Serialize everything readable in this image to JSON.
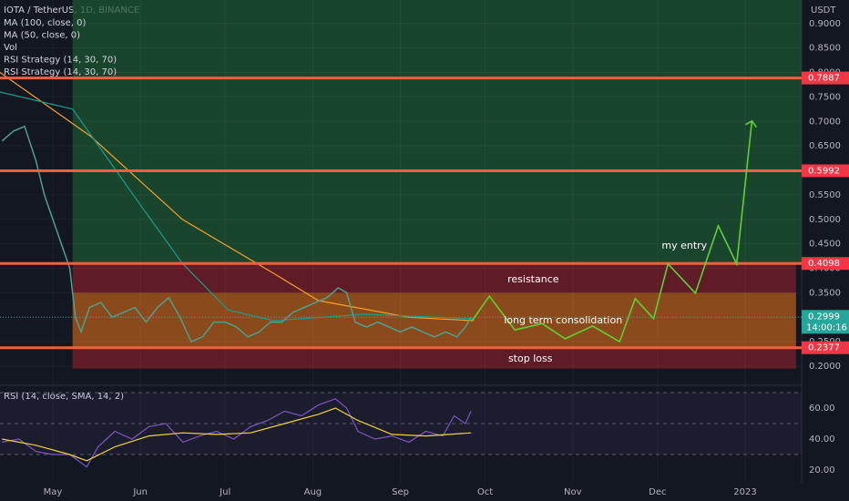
{
  "chart_data": [
    {
      "type": "line",
      "title": "IOTA / TetherUS, 1D, BINANCE",
      "indicators": [
        "MA (100, close, 0)",
        "MA (50, close, 0)",
        "Vol",
        "RSI Strategy (14, 30, 70)",
        "RSI Strategy (14, 30, 70)"
      ],
      "unit": "USDT",
      "xlim": [
        -18.7,
        265
      ],
      "ylim": [
        0.1665,
        0.948
      ],
      "xticks": [
        {
          "value": 0,
          "label": "May"
        },
        {
          "value": 31,
          "label": "Jun"
        },
        {
          "value": 61,
          "label": "Jul"
        },
        {
          "value": 92,
          "label": "Aug"
        },
        {
          "value": 123,
          "label": "Sep"
        },
        {
          "value": 153,
          "label": "Oct"
        },
        {
          "value": 184,
          "label": "Nov"
        },
        {
          "value": 214,
          "label": "Dec"
        },
        {
          "value": 245,
          "label": "2023"
        }
      ],
      "yticks": [
        {
          "value": 0.2,
          "label": "0.2000"
        },
        {
          "value": 0.25,
          "label": "0.2500"
        },
        {
          "value": 0.3,
          "label": "0.3000"
        },
        {
          "value": 0.35,
          "label": "0.3500"
        },
        {
          "value": 0.4,
          "label": "0.4000"
        },
        {
          "value": 0.45,
          "label": "0.4500"
        },
        {
          "value": 0.5,
          "label": "0.5000"
        },
        {
          "value": 0.55,
          "label": "0.5500"
        },
        {
          "value": 0.6,
          "label": "0.6000"
        },
        {
          "value": 0.65,
          "label": "0.6500"
        },
        {
          "value": 0.7,
          "label": "0.7000"
        },
        {
          "value": 0.75,
          "label": "0.7500"
        },
        {
          "value": 0.8,
          "label": "0.8000"
        },
        {
          "value": 0.85,
          "label": "0.8500"
        },
        {
          "value": 0.9,
          "label": "0.9000"
        }
      ],
      "price": {
        "color": "#4fa08e",
        "x": [
          -18,
          -14,
          -10,
          -6,
          -3,
          0,
          3,
          6,
          8,
          10,
          13,
          17,
          21,
          25,
          29,
          33,
          37,
          41,
          45,
          49,
          53,
          57,
          61,
          65,
          69,
          73,
          77,
          81,
          85,
          89,
          93,
          97,
          101,
          104,
          107,
          111,
          115,
          119,
          123,
          127,
          131,
          135,
          139,
          143,
          146,
          148
        ],
        "values": [
          0.66,
          0.68,
          0.69,
          0.62,
          0.55,
          0.5,
          0.45,
          0.4,
          0.3,
          0.27,
          0.32,
          0.33,
          0.3,
          0.31,
          0.32,
          0.29,
          0.32,
          0.34,
          0.3,
          0.25,
          0.26,
          0.29,
          0.29,
          0.28,
          0.26,
          0.27,
          0.29,
          0.29,
          0.31,
          0.32,
          0.33,
          0.34,
          0.36,
          0.35,
          0.29,
          0.28,
          0.29,
          0.28,
          0.27,
          0.28,
          0.27,
          0.26,
          0.27,
          0.26,
          0.28,
          0.2999
        ]
      },
      "series": [
        {
          "name": "MA (100, close, 0)",
          "color": "#f7a325",
          "x": [
            -18.7,
            13.5,
            45.8,
            78,
            94,
            126,
            149
          ],
          "values": [
            0.8,
            0.669,
            0.5,
            0.39,
            0.334,
            0.3,
            0.293
          ]
        },
        {
          "name": "MA (50, close, 0)",
          "color": "#1e9b8a",
          "x": [
            -18.7,
            7,
            29.7,
            45.8,
            62,
            78,
            110,
            149
          ],
          "values": [
            0.76,
            0.725,
            0.54,
            0.41,
            0.315,
            0.293,
            0.306,
            0.297
          ]
        }
      ],
      "zones": [
        {
          "color": "#1e5631",
          "x0": 7,
          "x1": 265,
          "y0": 0.4098,
          "y1": 0.948
        },
        {
          "color": "#7a1f2a",
          "x0": 7,
          "x1": 263,
          "y0": 0.195,
          "y1": 0.4098
        },
        {
          "color": "#9a5a18",
          "x0": 7,
          "x1": 263,
          "y0": 0.2377,
          "y1": 0.35
        }
      ],
      "levels": [
        {
          "value": 0.7887,
          "color": "#f0603c"
        },
        {
          "value": 0.5992,
          "color": "#f0603c"
        },
        {
          "value": 0.4098,
          "color": "#f0603c"
        },
        {
          "value": 0.2377,
          "color": "#f0603c"
        }
      ],
      "projection": {
        "color": "#5fd038",
        "x": [
          148.4,
          154.5,
          163.5,
          173.2,
          181.3,
          191,
          200.6,
          206.1,
          212.6,
          217.7,
          227.4,
          235.5,
          242,
          247.4
        ],
        "values": [
          0.293,
          0.343,
          0.274,
          0.287,
          0.256,
          0.282,
          0.25,
          0.338,
          0.297,
          0.409,
          0.349,
          0.487,
          0.409,
          0.701
        ]
      },
      "annotations": [
        {
          "text": "resistance",
          "x": 170,
          "y": 0.377
        },
        {
          "text": "long term consolidation",
          "x": 180.6,
          "y": 0.293
        },
        {
          "text": "stop loss",
          "x": 169,
          "y": 0.215
        },
        {
          "text": "my entry",
          "x": 223.5,
          "y": 0.446
        }
      ],
      "last_price": {
        "value": 0.2999,
        "countdown": "14:00:16",
        "color": "#26a69a"
      }
    },
    {
      "type": "line",
      "title": "RSI (14, close, SMA, 14, 2)",
      "xlim": [
        -18.7,
        265
      ],
      "ylim": [
        11.8,
        73.5
      ],
      "yticks": [
        {
          "value": 20,
          "label": "20.00"
        },
        {
          "value": 40,
          "label": "40.00"
        },
        {
          "value": 60,
          "label": "60.00"
        }
      ],
      "bands": [
        30,
        50,
        70
      ],
      "series": [
        {
          "color": "#7e57c2",
          "x": [
            -18,
            -12,
            -6,
            0,
            6,
            12,
            16,
            22,
            28,
            34,
            40,
            46,
            52,
            58,
            64,
            70,
            76,
            82,
            88,
            94,
            100,
            104,
            108,
            114,
            120,
            126,
            132,
            138,
            142,
            146,
            148
          ],
          "values": [
            38,
            40,
            32,
            30,
            30,
            22,
            35,
            45,
            40,
            48,
            50,
            38,
            42,
            45,
            40,
            48,
            52,
            58,
            55,
            62,
            66,
            60,
            45,
            40,
            42,
            38,
            45,
            42,
            55,
            50,
            58
          ]
        },
        {
          "color": "#f0d43a",
          "x": [
            -18,
            -6,
            6,
            12,
            22,
            34,
            46,
            58,
            70,
            82,
            94,
            100,
            108,
            120,
            132,
            148
          ],
          "values": [
            40,
            36,
            30,
            26,
            35,
            42,
            44,
            43,
            44,
            50,
            56,
            60,
            52,
            43,
            42,
            44
          ]
        }
      ]
    }
  ]
}
